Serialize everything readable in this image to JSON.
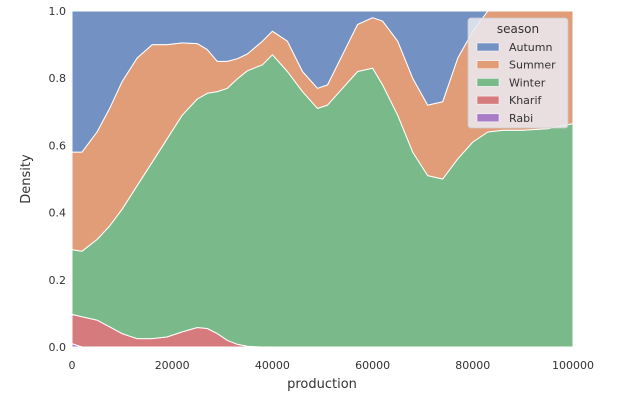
{
  "chart_data": {
    "type": "area",
    "stacked": true,
    "normalized": true,
    "xlabel": "production",
    "ylabel": "Density",
    "xlim": [
      0,
      100000
    ],
    "ylim": [
      0,
      1.0
    ],
    "x_ticks": [
      0,
      20000,
      40000,
      60000,
      80000,
      100000
    ],
    "y_ticks": [
      0.0,
      0.2,
      0.4,
      0.6,
      0.8,
      1.0
    ],
    "legend": {
      "title": "season",
      "position": "upper-right"
    },
    "x": [
      0,
      2000,
      5000,
      7500,
      10000,
      13000,
      16000,
      19000,
      22000,
      25000,
      27000,
      29000,
      31000,
      33000,
      35000,
      38000,
      40000,
      43000,
      46000,
      49000,
      51000,
      54000,
      57000,
      60000,
      62000,
      65000,
      68000,
      71000,
      74000,
      77000,
      80000,
      83000,
      86000,
      90000,
      95000,
      100000
    ],
    "series": [
      {
        "name": "Rabi",
        "color": "#a87cc6",
        "values": [
          0.01,
          0.0,
          0.0,
          0.0,
          0.0,
          0.0,
          0.0,
          0.0,
          0.0,
          0.0,
          0.0,
          0.0,
          0.0,
          0.0,
          0.0,
          0.0,
          0.0,
          0.0,
          0.0,
          0.0,
          0.0,
          0.0,
          0.0,
          0.0,
          0.0,
          0.0,
          0.0,
          0.0,
          0.0,
          0.0,
          0.0,
          0.0,
          0.0,
          0.0,
          0.0,
          0.0
        ]
      },
      {
        "name": "Kharif",
        "color": "#d57a7d",
        "values": [
          0.087,
          0.09,
          0.08,
          0.06,
          0.04,
          0.025,
          0.025,
          0.03,
          0.045,
          0.058,
          0.055,
          0.04,
          0.02,
          0.008,
          0.002,
          0.0,
          0.0,
          0.0,
          0.0,
          0.0,
          0.0,
          0.0,
          0.0,
          0.0,
          0.0,
          0.0,
          0.0,
          0.0,
          0.0,
          0.0,
          0.0,
          0.0,
          0.0,
          0.0,
          0.0,
          0.0
        ]
      },
      {
        "name": "Winter",
        "color": "#7ab98a",
        "values": [
          0.193,
          0.195,
          0.24,
          0.3,
          0.37,
          0.455,
          0.525,
          0.59,
          0.645,
          0.68,
          0.7,
          0.72,
          0.75,
          0.79,
          0.82,
          0.84,
          0.87,
          0.82,
          0.76,
          0.71,
          0.72,
          0.77,
          0.82,
          0.83,
          0.78,
          0.69,
          0.58,
          0.51,
          0.5,
          0.56,
          0.61,
          0.64,
          0.645,
          0.645,
          0.65,
          0.665
        ]
      },
      {
        "name": "Summer",
        "color": "#e09d78",
        "values": [
          0.29,
          0.295,
          0.32,
          0.35,
          0.38,
          0.38,
          0.35,
          0.28,
          0.215,
          0.165,
          0.13,
          0.09,
          0.08,
          0.06,
          0.05,
          0.07,
          0.07,
          0.09,
          0.06,
          0.06,
          0.06,
          0.1,
          0.14,
          0.15,
          0.19,
          0.22,
          0.22,
          0.21,
          0.23,
          0.3,
          0.33,
          0.36,
          0.355,
          0.355,
          0.35,
          0.335
        ]
      },
      {
        "name": "Autumn",
        "color": "#7392c3",
        "values": [
          0.42,
          0.42,
          0.36,
          0.29,
          0.21,
          0.14,
          0.1,
          0.1,
          0.095,
          0.097,
          0.115,
          0.15,
          0.15,
          0.142,
          0.128,
          0.09,
          0.06,
          0.09,
          0.18,
          0.23,
          0.22,
          0.13,
          0.04,
          0.02,
          0.03,
          0.09,
          0.2,
          0.28,
          0.27,
          0.14,
          0.06,
          0.0,
          0.0,
          0.0,
          0.0,
          0.0
        ]
      }
    ]
  }
}
